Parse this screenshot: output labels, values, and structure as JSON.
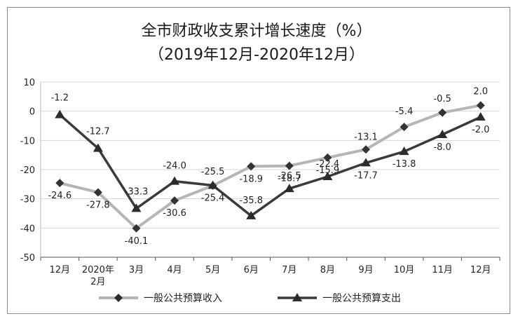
{
  "chart_data": {
    "type": "line",
    "title": "全市财政收支累计增长速度（%）",
    "subtitle": "（2019年12月-2020年12月）",
    "categories": [
      "12月",
      "2020年\n2月",
      "3月",
      "4月",
      "5月",
      "6月",
      "7月",
      "8月",
      "9月",
      "10月",
      "11月",
      "12月"
    ],
    "ylim": [
      -50,
      10
    ],
    "yticks": [
      10,
      0,
      -10,
      -20,
      -30,
      -40,
      -50
    ],
    "grid": true,
    "legend_position": "bottom",
    "series": [
      {
        "name": "一般公共预算收入",
        "marker": "diamond",
        "color": "#b5b5b5",
        "values": [
          -24.6,
          -27.8,
          -40.1,
          -30.6,
          -25.5,
          -18.9,
          -18.7,
          -15.9,
          -13.1,
          -5.4,
          -0.5,
          2.0
        ],
        "labels": [
          "-24.6",
          "-27.8",
          "-40.1",
          "-30.6",
          "-25.5",
          "-18.9",
          "-18.7",
          "-15.9",
          "-13.1",
          "-5.4",
          "-0.5",
          "2.0"
        ]
      },
      {
        "name": "一般公共预算支出",
        "marker": "triangle",
        "color": "#3a3a3a",
        "values": [
          -1.2,
          -12.7,
          -33.3,
          -24.0,
          -25.4,
          -35.8,
          -26.5,
          -22.4,
          -17.7,
          -13.8,
          -8.0,
          -2.0
        ],
        "labels": [
          "-1.2",
          "-12.7",
          "-33.3",
          "-24.0",
          "-25.4",
          "-35.8",
          "-26.5",
          "-22.4",
          "-17.7",
          "-13.8",
          "-8.0",
          "-2.0"
        ]
      }
    ]
  }
}
